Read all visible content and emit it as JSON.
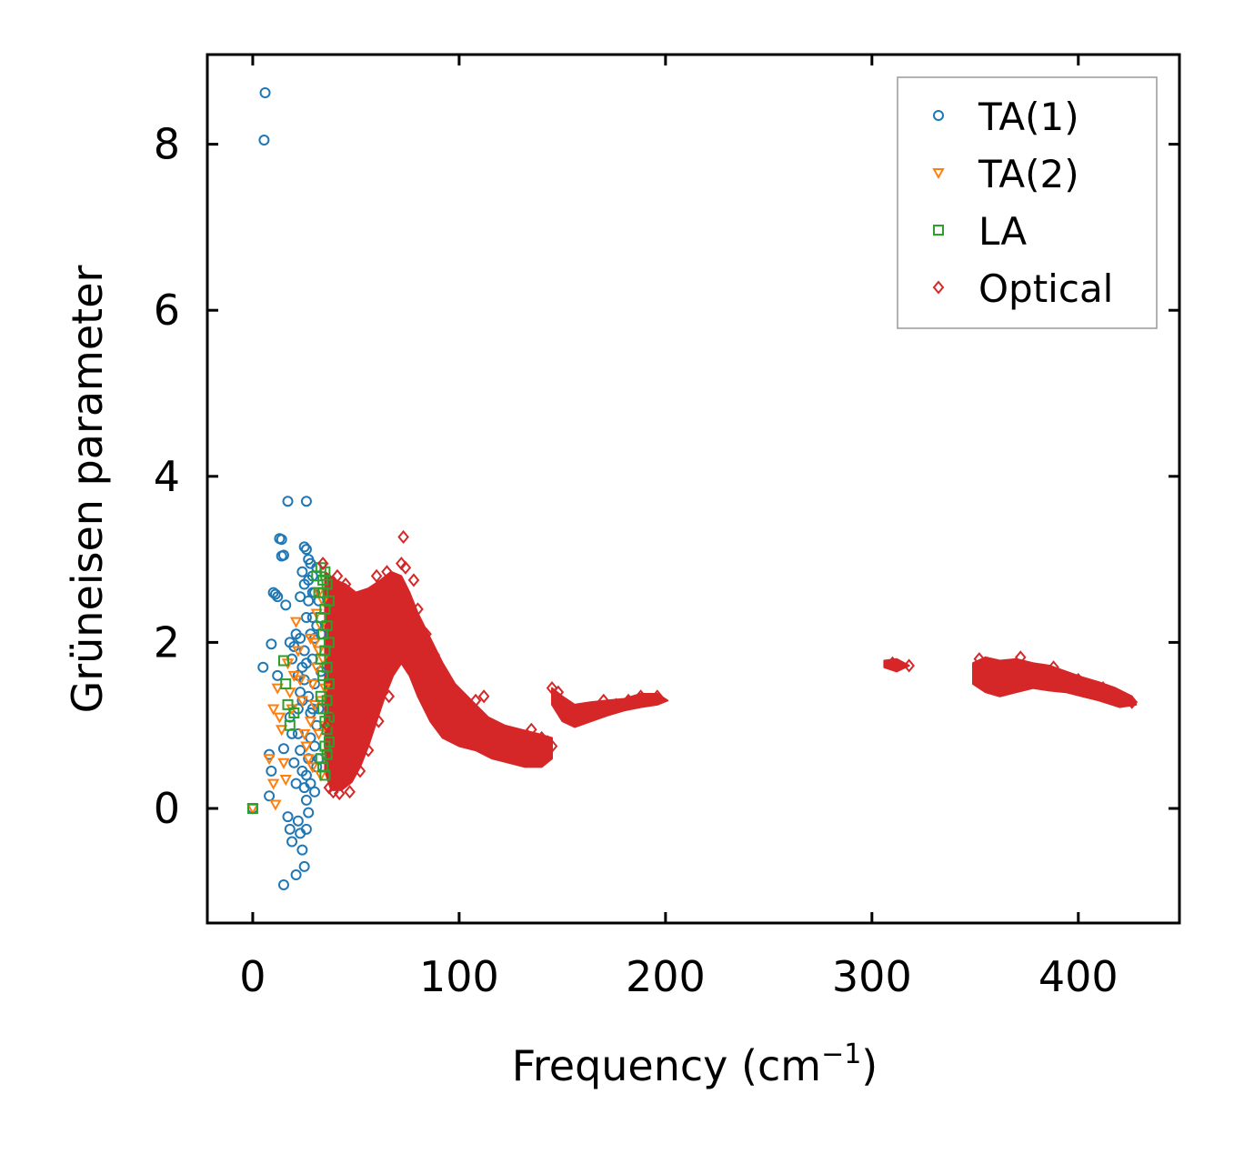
{
  "chart_data": {
    "type": "scatter",
    "title": "",
    "xlabel": "Frequency (cm",
    "xlabel_sup": "−1",
    "xlabel_close": ")",
    "ylabel": "Grüneisen parameter",
    "xlim": [
      -22,
      449
    ],
    "ylim": [
      -1.38,
      9.08
    ],
    "x_ticks": [
      0,
      100,
      200,
      300,
      400
    ],
    "x_tick_labels": [
      "0",
      "100",
      "200",
      "300",
      "400"
    ],
    "y_ticks": [
      0,
      2,
      4,
      6,
      8
    ],
    "y_tick_labels": [
      "0",
      "2",
      "4",
      "6",
      "8"
    ],
    "grid": false,
    "legend_position": "top-right",
    "series": [
      {
        "name": "TA(1)",
        "marker": "circle",
        "color": "#1f77b4",
        "points": [
          [
            0,
            0
          ],
          [
            6,
            8.62
          ],
          [
            5.5,
            8.05
          ],
          [
            5,
            1.7
          ],
          [
            8,
            0.65
          ],
          [
            9,
            0.45
          ],
          [
            8,
            0.15
          ],
          [
            10,
            2.6
          ],
          [
            11,
            2.58
          ],
          [
            12,
            2.55
          ],
          [
            9,
            1.98
          ],
          [
            13,
            3.25
          ],
          [
            14,
            3.24
          ],
          [
            15,
            3.05
          ],
          [
            14,
            3.04
          ],
          [
            16,
            2.45
          ],
          [
            12,
            1.6
          ],
          [
            15,
            0.72
          ],
          [
            17,
            3.7
          ],
          [
            26,
            3.7
          ],
          [
            18,
            2.0
          ],
          [
            19,
            1.8
          ],
          [
            20,
            1.95
          ],
          [
            21,
            2.1
          ],
          [
            22,
            1.6
          ],
          [
            18,
            1.1
          ],
          [
            19,
            0.9
          ],
          [
            20,
            0.55
          ],
          [
            21,
            0.3
          ],
          [
            17,
            -0.1
          ],
          [
            18,
            -0.25
          ],
          [
            19,
            -0.4
          ],
          [
            22,
            -0.15
          ],
          [
            23,
            -0.3
          ],
          [
            24,
            -0.5
          ],
          [
            25,
            -0.7
          ],
          [
            21,
            -0.8
          ],
          [
            15,
            -0.92
          ],
          [
            26,
            -0.25
          ],
          [
            27,
            -0.05
          ],
          [
            25,
            3.15
          ],
          [
            26,
            3.12
          ],
          [
            27,
            3.0
          ],
          [
            28,
            2.95
          ],
          [
            24,
            2.85
          ],
          [
            23,
            2.55
          ],
          [
            29,
            2.8
          ],
          [
            30,
            2.6
          ],
          [
            31,
            2.2
          ],
          [
            22,
            1.2
          ],
          [
            23,
            1.4
          ],
          [
            24,
            1.7
          ],
          [
            25,
            1.9
          ],
          [
            26,
            2.3
          ],
          [
            27,
            2.5
          ],
          [
            28,
            2.1
          ],
          [
            29,
            1.8
          ],
          [
            30,
            1.5
          ],
          [
            31,
            1.0
          ],
          [
            22,
            0.9
          ],
          [
            23,
            0.7
          ],
          [
            24,
            0.45
          ],
          [
            25,
            0.25
          ],
          [
            26,
            0.1
          ],
          [
            27,
            0.6
          ],
          [
            28,
            0.85
          ],
          [
            29,
            1.2
          ],
          [
            30,
            0.75
          ],
          [
            31,
            0.5
          ],
          [
            24,
            1.3
          ],
          [
            25,
            1.55
          ],
          [
            26,
            1.75
          ],
          [
            27,
            1.35
          ],
          [
            28,
            1.15
          ],
          [
            29,
            2.3
          ],
          [
            30,
            2.05
          ],
          [
            32,
            2.5
          ],
          [
            32,
            1.2
          ],
          [
            33,
            1.65
          ],
          [
            23,
            2.05
          ],
          [
            25,
            2.7
          ],
          [
            27,
            2.75
          ],
          [
            29,
            2.6
          ],
          [
            31,
            2.9
          ],
          [
            33,
            2.1
          ],
          [
            26,
            0.4
          ],
          [
            28,
            0.3
          ],
          [
            30,
            0.2
          ],
          [
            32,
            0.6
          ]
        ]
      },
      {
        "name": "TA(2)",
        "marker": "triangle-down",
        "color": "#ff7f0e",
        "points": [
          [
            0,
            0
          ],
          [
            8,
            0.6
          ],
          [
            10,
            0.3
          ],
          [
            11,
            0.05
          ],
          [
            10,
            1.2
          ],
          [
            12,
            1.45
          ],
          [
            13,
            1.1
          ],
          [
            14,
            0.95
          ],
          [
            15,
            0.55
          ],
          [
            16,
            0.35
          ],
          [
            17,
            1.75
          ],
          [
            18,
            1.4
          ],
          [
            19,
            1.2
          ],
          [
            20,
            1.6
          ],
          [
            21,
            2.25
          ],
          [
            22,
            1.9
          ],
          [
            23,
            1.55
          ],
          [
            24,
            1.3
          ],
          [
            25,
            0.9
          ],
          [
            26,
            0.75
          ],
          [
            27,
            0.6
          ],
          [
            28,
            1.05
          ],
          [
            29,
            1.5
          ],
          [
            30,
            2.0
          ],
          [
            31,
            2.35
          ],
          [
            32,
            2.6
          ],
          [
            33,
            2.2
          ],
          [
            34,
            1.8
          ],
          [
            35,
            1.45
          ],
          [
            33,
            0.4
          ],
          [
            32,
            0.9
          ],
          [
            31,
            1.7
          ],
          [
            30,
            1.25
          ],
          [
            29,
            0.5
          ],
          [
            28,
            2.05
          ],
          [
            34,
            2.5
          ],
          [
            35,
            1.0
          ],
          [
            33,
            1.3
          ],
          [
            32,
            1.9
          ]
        ]
      },
      {
        "name": "LA",
        "marker": "square",
        "color": "#2ca02c",
        "points": [
          [
            0,
            0
          ],
          [
            15,
            1.78
          ],
          [
            16,
            1.5
          ],
          [
            17,
            1.25
          ],
          [
            18,
            1.0
          ],
          [
            20,
            1.15
          ],
          [
            31,
            2.8
          ],
          [
            32,
            2.6
          ],
          [
            33,
            2.9
          ],
          [
            34,
            2.75
          ],
          [
            35,
            2.85
          ],
          [
            36,
            2.7
          ],
          [
            37,
            2.5
          ],
          [
            33,
            2.3
          ],
          [
            34,
            2.1
          ],
          [
            35,
            1.9
          ],
          [
            36,
            1.7
          ],
          [
            37,
            1.5
          ],
          [
            33,
            1.35
          ],
          [
            34,
            1.2
          ],
          [
            35,
            1.05
          ],
          [
            36,
            0.95
          ],
          [
            37,
            0.8
          ],
          [
            33,
            0.6
          ],
          [
            34,
            0.5
          ],
          [
            35,
            0.4
          ],
          [
            36,
            1.3
          ],
          [
            37,
            2.0
          ],
          [
            35,
            2.4
          ],
          [
            36,
            2.2
          ],
          [
            34,
            1.6
          ],
          [
            33,
            1.8
          ],
          [
            36,
            0.65
          ],
          [
            37,
            1.1
          ],
          [
            35,
            0.75
          ],
          [
            34,
            2.6
          ]
        ]
      },
      {
        "name": "Optical",
        "marker": "diamond",
        "color": "#d62728",
        "points": [
          [
            34,
            2.95
          ],
          [
            73,
            3.27
          ],
          [
            41,
            2.8
          ],
          [
            45,
            2.7
          ],
          [
            60,
            2.8
          ],
          [
            65,
            2.85
          ],
          [
            72,
            2.95
          ],
          [
            74,
            2.9
          ],
          [
            78,
            2.75
          ],
          [
            37,
            0.25
          ],
          [
            39,
            0.2
          ],
          [
            42,
            0.18
          ],
          [
            47,
            0.2
          ],
          [
            52,
            0.45
          ],
          [
            56,
            0.7
          ],
          [
            61,
            1.05
          ],
          [
            66,
            1.35
          ],
          [
            36,
            1.0
          ],
          [
            40,
            1.2
          ],
          [
            44,
            1.45
          ],
          [
            48,
            1.7
          ],
          [
            52,
            1.95
          ],
          [
            56,
            2.2
          ],
          [
            60,
            2.4
          ],
          [
            64,
            2.55
          ],
          [
            68,
            2.65
          ],
          [
            80,
            2.4
          ],
          [
            84,
            2.1
          ],
          [
            88,
            1.85
          ],
          [
            92,
            1.55
          ],
          [
            96,
            1.35
          ],
          [
            100,
            1.2
          ],
          [
            104,
            1.05
          ],
          [
            108,
            1.3
          ],
          [
            112,
            1.35
          ],
          [
            115,
            0.85
          ],
          [
            120,
            0.75
          ],
          [
            125,
            0.7
          ],
          [
            130,
            0.8
          ],
          [
            135,
            0.95
          ],
          [
            140,
            0.85
          ],
          [
            143,
            0.8
          ],
          [
            145,
            0.75
          ],
          [
            145,
            1.45
          ],
          [
            148,
            1.4
          ],
          [
            152,
            1.25
          ],
          [
            158,
            1.15
          ],
          [
            164,
            1.2
          ],
          [
            170,
            1.3
          ],
          [
            176,
            1.25
          ],
          [
            182,
            1.3
          ],
          [
            188,
            1.35
          ],
          [
            196,
            1.35
          ],
          [
            310,
            1.75
          ],
          [
            318,
            1.72
          ],
          [
            352,
            1.8
          ],
          [
            372,
            1.82
          ],
          [
            388,
            1.7
          ],
          [
            400,
            1.55
          ],
          [
            412,
            1.45
          ],
          [
            426,
            1.28
          ]
        ]
      }
    ]
  }
}
